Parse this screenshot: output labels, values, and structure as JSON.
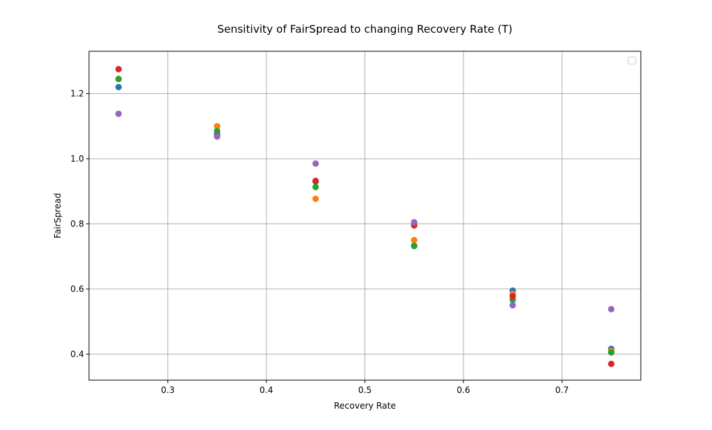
{
  "chart_data": {
    "type": "scatter",
    "title": "Sensitivity of FairSpread to changing Recovery Rate (T)",
    "xlabel": "Recovery Rate",
    "ylabel": "FairSpread",
    "xlim": [
      0.22,
      0.78
    ],
    "ylim": [
      0.32,
      1.33
    ],
    "xticks": [
      "0.3",
      "0.4",
      "0.5",
      "0.6",
      "0.7"
    ],
    "yticks": [
      "0.4",
      "0.6",
      "0.8",
      "1.0",
      "1.2"
    ],
    "grid": true,
    "legend": "top-right",
    "series": [
      {
        "color": "#1f77b4",
        "points": [
          [
            0.25,
            1.22
          ],
          [
            0.35,
            1.075
          ],
          [
            0.45,
            0.93
          ],
          [
            0.55,
            0.732
          ],
          [
            0.65,
            0.595
          ],
          [
            0.75,
            0.416
          ]
        ]
      },
      {
        "color": "#ff7f0e",
        "points": [
          [
            0.25,
            1.245
          ],
          [
            0.35,
            1.1
          ],
          [
            0.45,
            0.877
          ],
          [
            0.55,
            0.75
          ],
          [
            0.65,
            0.585
          ],
          [
            0.75,
            0.41
          ]
        ]
      },
      {
        "color": "#2ca02c",
        "points": [
          [
            0.25,
            1.245
          ],
          [
            0.35,
            1.085
          ],
          [
            0.45,
            0.913
          ],
          [
            0.55,
            0.733
          ],
          [
            0.65,
            0.567
          ],
          [
            0.75,
            0.405
          ]
        ]
      },
      {
        "color": "#d62728",
        "points": [
          [
            0.25,
            1.275
          ],
          [
            0.35,
            1.07
          ],
          [
            0.45,
            0.932
          ],
          [
            0.55,
            0.795
          ],
          [
            0.65,
            0.578
          ],
          [
            0.75,
            0.37
          ]
        ]
      },
      {
        "color": "#9467bd",
        "points": [
          [
            0.25,
            1.138
          ],
          [
            0.35,
            1.068
          ],
          [
            0.45,
            0.985
          ],
          [
            0.55,
            0.805
          ],
          [
            0.65,
            0.55
          ],
          [
            0.75,
            0.538
          ]
        ]
      }
    ]
  }
}
